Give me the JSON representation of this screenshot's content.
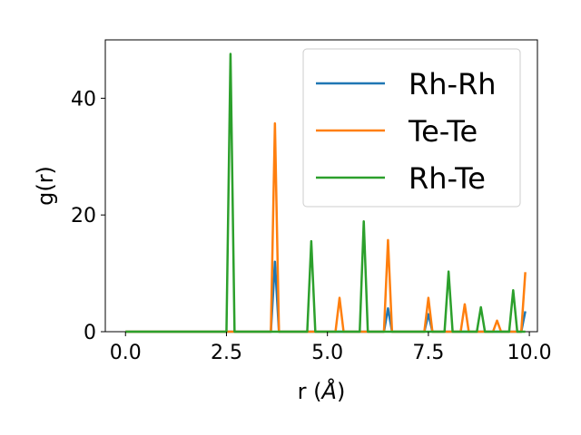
{
  "chart_data": {
    "type": "line",
    "xlabel": "r (",
    "xlabel_unit": "Å",
    "xlabel_close": ")",
    "ylabel": "g(r)",
    "xlim": [
      -0.5,
      10.2
    ],
    "ylim": [
      0,
      50
    ],
    "x_ticks": [
      0.0,
      2.5,
      5.0,
      7.5,
      10.0
    ],
    "x_tick_labels": [
      "0.0",
      "2.5",
      "5.0",
      "7.5",
      "10.0"
    ],
    "y_ticks": [
      0,
      20,
      40
    ],
    "y_tick_labels": [
      "0",
      "20",
      "40"
    ],
    "grid": false,
    "legend": "top-right",
    "series": [
      {
        "name": "Rh-Rh",
        "color": "#1f77b4",
        "points": [
          [
            0.0,
            0
          ],
          [
            3.6,
            0
          ],
          [
            3.7,
            12
          ],
          [
            3.8,
            0
          ],
          [
            6.4,
            0
          ],
          [
            6.5,
            4
          ],
          [
            6.6,
            0
          ],
          [
            7.4,
            0
          ],
          [
            7.5,
            3
          ],
          [
            7.6,
            0
          ],
          [
            9.8,
            0
          ],
          [
            9.9,
            3.5
          ]
        ]
      },
      {
        "name": "Te-Te",
        "color": "#ff7f0e",
        "points": [
          [
            0.0,
            0
          ],
          [
            3.6,
            0
          ],
          [
            3.7,
            35.7
          ],
          [
            3.8,
            0
          ],
          [
            5.2,
            0
          ],
          [
            5.3,
            5.8
          ],
          [
            5.4,
            0
          ],
          [
            6.4,
            0
          ],
          [
            6.5,
            15.7
          ],
          [
            6.6,
            0
          ],
          [
            7.4,
            0
          ],
          [
            7.5,
            5.8
          ],
          [
            7.6,
            0
          ],
          [
            8.3,
            0
          ],
          [
            8.4,
            4.7
          ],
          [
            8.5,
            0
          ],
          [
            9.1,
            0
          ],
          [
            9.2,
            1.9
          ],
          [
            9.3,
            0
          ],
          [
            9.8,
            0
          ],
          [
            9.9,
            10.2
          ]
        ]
      },
      {
        "name": "Rh-Te",
        "color": "#2ca02c",
        "points": [
          [
            0.0,
            0
          ],
          [
            2.5,
            0
          ],
          [
            2.6,
            47.6
          ],
          [
            2.7,
            0
          ],
          [
            4.5,
            0
          ],
          [
            4.6,
            15.5
          ],
          [
            4.7,
            0
          ],
          [
            5.8,
            0
          ],
          [
            5.9,
            18.9
          ],
          [
            6.0,
            0
          ],
          [
            7.9,
            0
          ],
          [
            8.0,
            10.3
          ],
          [
            8.1,
            0
          ],
          [
            8.7,
            0
          ],
          [
            8.8,
            4.2
          ],
          [
            8.9,
            0
          ],
          [
            9.5,
            0
          ],
          [
            9.6,
            7.1
          ],
          [
            9.7,
            0
          ],
          [
            9.9,
            0
          ]
        ]
      }
    ]
  }
}
